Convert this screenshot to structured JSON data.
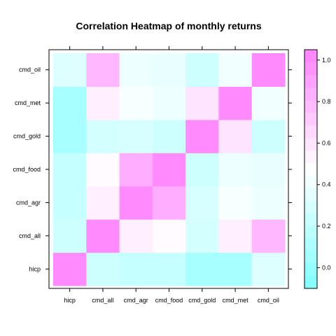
{
  "chart_data": {
    "type": "heatmap",
    "title": "Correlation Heatmap of monthly returns",
    "xlabel": "",
    "ylabel": "",
    "x_categories": [
      "hicp",
      "cmd_all",
      "cmd_agr",
      "cmd_food",
      "cmd_gold",
      "cmd_met",
      "cmd_oil"
    ],
    "y_categories": [
      "hicp",
      "cmd_all",
      "cmd_agr",
      "cmd_food",
      "cmd_gold",
      "cmd_met",
      "cmd_oil"
    ],
    "values": [
      [
        1.0,
        0.25,
        0.22,
        0.22,
        0.08,
        0.08,
        0.33
      ],
      [
        0.25,
        1.0,
        0.55,
        0.5,
        0.28,
        0.55,
        0.8
      ],
      [
        0.22,
        0.55,
        1.0,
        0.85,
        0.3,
        0.45,
        0.4
      ],
      [
        0.22,
        0.5,
        0.85,
        1.0,
        0.25,
        0.4,
        0.38
      ],
      [
        0.08,
        0.28,
        0.3,
        0.25,
        1.0,
        0.6,
        0.25
      ],
      [
        0.08,
        0.55,
        0.45,
        0.4,
        0.6,
        1.0,
        0.42
      ],
      [
        0.33,
        0.8,
        0.4,
        0.38,
        0.25,
        0.42,
        1.0
      ]
    ],
    "colorbar": {
      "ticks": [
        0.0,
        0.2,
        0.4,
        0.6,
        0.8,
        1.0
      ],
      "tick_labels": [
        "0.0",
        "0.2",
        "0.4",
        "0.6",
        "0.8",
        "1.0"
      ],
      "range": [
        -0.1,
        1.05
      ],
      "low_color": "#80FFFF",
      "high_color": "#FF80FF",
      "mid_color": "#FFFFFF"
    },
    "grid": false,
    "legend": "right"
  }
}
